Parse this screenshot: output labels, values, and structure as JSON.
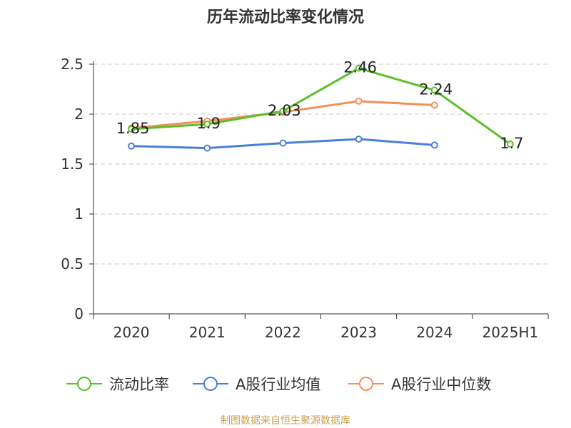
{
  "chart_data": {
    "type": "line",
    "title": "历年流动比率变化情况",
    "categories": [
      "2020",
      "2021",
      "2022",
      "2023",
      "2024",
      "2025H1"
    ],
    "ylim": [
      0,
      2.5
    ],
    "yticks": [
      "0",
      "0.5",
      "1",
      "1.5",
      "2",
      "2.5"
    ],
    "grid": true,
    "legend_position": "bottom",
    "series": [
      {
        "name": "流动比率",
        "color": "#5cbf2a",
        "values": [
          1.85,
          1.9,
          2.03,
          2.46,
          2.24,
          1.7
        ],
        "labels": [
          "1.85",
          "1.9",
          "2.03",
          "2.46",
          "2.24",
          "1.7"
        ]
      },
      {
        "name": "A股行业均值",
        "color": "#4a7fd8",
        "values": [
          1.68,
          1.66,
          1.71,
          1.75,
          1.69,
          null
        ]
      },
      {
        "name": "A股行业中位数",
        "color": "#f58f5a",
        "values": [
          1.86,
          1.93,
          2.02,
          2.13,
          2.09,
          null
        ]
      }
    ]
  },
  "footer": "制图数据来自恒生聚源数据库"
}
